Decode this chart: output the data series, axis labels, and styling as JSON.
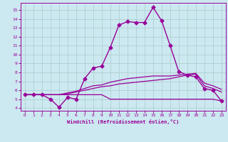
{
  "xlabel": "Windchill (Refroidissement éolien,°C)",
  "bg_color": "#cce8f0",
  "line_color": "#990099",
  "grid_color": "#aacccc",
  "x_ticks": [
    0,
    1,
    2,
    3,
    4,
    5,
    6,
    7,
    8,
    9,
    10,
    11,
    12,
    13,
    14,
    15,
    16,
    17,
    18,
    19,
    20,
    21,
    22,
    23
  ],
  "y_ticks": [
    4,
    5,
    6,
    7,
    8,
    9,
    10,
    11,
    12,
    13,
    14,
    15
  ],
  "ylim": [
    3.7,
    15.8
  ],
  "xlim": [
    -0.5,
    23.5
  ],
  "series": [
    {
      "x": [
        0,
        1,
        2,
        3,
        4,
        5,
        6,
        7,
        8,
        9,
        10,
        11,
        12,
        13,
        14,
        15,
        16,
        17,
        18,
        19,
        20,
        21,
        22,
        23
      ],
      "y": [
        5.5,
        5.5,
        5.5,
        5.0,
        4.1,
        5.2,
        5.0,
        7.3,
        8.5,
        8.7,
        10.8,
        13.3,
        13.7,
        13.6,
        13.6,
        15.3,
        13.8,
        11.0,
        8.1,
        7.7,
        7.5,
        6.2,
        6.0,
        4.8
      ],
      "marker": "D",
      "markersize": 2.5,
      "linewidth": 1.0
    },
    {
      "x": [
        0,
        1,
        2,
        3,
        4,
        5,
        6,
        7,
        8,
        9,
        10,
        11,
        12,
        13,
        14,
        15,
        16,
        17,
        18,
        19,
        20,
        21,
        22,
        23
      ],
      "y": [
        5.5,
        5.5,
        5.5,
        5.5,
        5.5,
        5.5,
        5.5,
        5.5,
        5.5,
        5.5,
        5.0,
        5.0,
        5.0,
        5.0,
        5.0,
        5.0,
        5.0,
        5.0,
        5.0,
        5.0,
        5.0,
        5.0,
        5.0,
        4.8
      ],
      "marker": null,
      "markersize": 0,
      "linewidth": 0.9
    },
    {
      "x": [
        0,
        1,
        2,
        3,
        4,
        5,
        6,
        7,
        8,
        9,
        10,
        11,
        12,
        13,
        14,
        15,
        16,
        17,
        18,
        19,
        20,
        21,
        22,
        23
      ],
      "y": [
        5.5,
        5.5,
        5.5,
        5.5,
        5.5,
        5.6,
        5.8,
        6.0,
        6.2,
        6.4,
        6.5,
        6.7,
        6.8,
        6.9,
        7.0,
        7.1,
        7.2,
        7.3,
        7.5,
        7.7,
        7.8,
        6.5,
        6.2,
        5.8
      ],
      "marker": null,
      "markersize": 0,
      "linewidth": 0.9
    },
    {
      "x": [
        0,
        1,
        2,
        3,
        4,
        5,
        6,
        7,
        8,
        9,
        10,
        11,
        12,
        13,
        14,
        15,
        16,
        17,
        18,
        19,
        20,
        21,
        22,
        23
      ],
      "y": [
        5.5,
        5.5,
        5.5,
        5.5,
        5.5,
        5.7,
        5.9,
        6.2,
        6.5,
        6.6,
        6.9,
        7.1,
        7.3,
        7.4,
        7.5,
        7.6,
        7.6,
        7.6,
        7.7,
        7.8,
        7.9,
        6.8,
        6.5,
        6.1
      ],
      "marker": null,
      "markersize": 0,
      "linewidth": 0.9
    }
  ]
}
